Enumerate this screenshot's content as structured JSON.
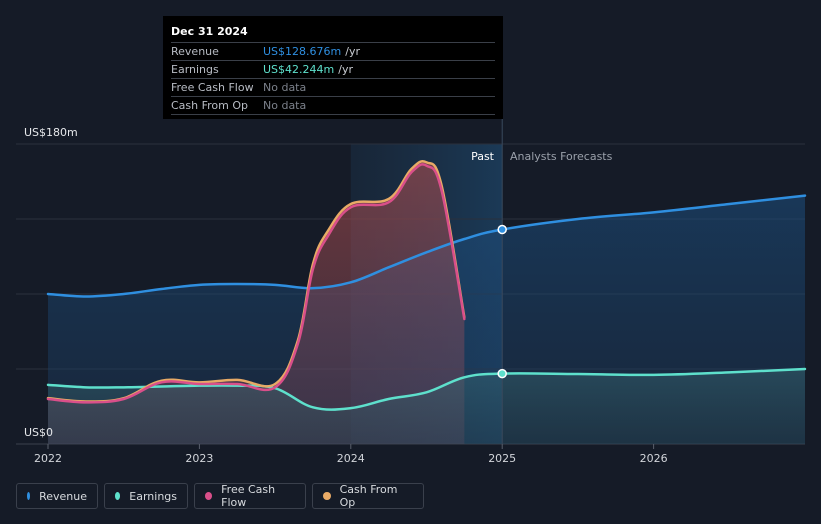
{
  "chart_data": {
    "type": "area",
    "y_axis": {
      "top_label": "US$180m",
      "bottom_label": "US$0",
      "ylim": [
        0,
        180
      ]
    },
    "x_ticks": [
      "2022",
      "2023",
      "2024",
      "2025",
      "2026"
    ],
    "x_tick_values": [
      2022.0,
      2023.0,
      2024.0,
      2025.0,
      2026.0
    ],
    "xlim": [
      2021.8,
      2027.0
    ],
    "past_label": "Past",
    "forecast_label": "Analysts Forecasts",
    "past_end": 2025.0,
    "highlight_start": 2024.0,
    "series": [
      {
        "name": "Revenue",
        "color": "#2f8fe0",
        "x": [
          2022.0,
          2022.25,
          2022.5,
          2022.75,
          2023.0,
          2023.25,
          2023.5,
          2023.75,
          2024.0,
          2024.25,
          2024.5,
          2024.75,
          2025.0,
          2025.5,
          2026.0,
          2026.5,
          2027.0
        ],
        "values": [
          90,
          88.5,
          90,
          93,
          95.5,
          96,
          95.5,
          93.5,
          97,
          106,
          115,
          123,
          128.676,
          135,
          139,
          144,
          149
        ]
      },
      {
        "name": "Earnings",
        "color": "#5ee0cc",
        "x": [
          2022.0,
          2022.25,
          2022.5,
          2022.75,
          2023.0,
          2023.25,
          2023.5,
          2023.75,
          2024.0,
          2024.25,
          2024.5,
          2024.75,
          2025.0,
          2025.5,
          2026.0,
          2026.5,
          2027.0
        ],
        "values": [
          35.5,
          34,
          34,
          34.5,
          35,
          35,
          33.5,
          22,
          21.5,
          27,
          31,
          40,
          42.244,
          42,
          41.5,
          43,
          45
        ]
      },
      {
        "name": "Free Cash Flow",
        "color": "#d94f8a",
        "x": [
          2022.0,
          2022.25,
          2022.5,
          2022.75,
          2023.0,
          2023.25,
          2023.5,
          2023.65,
          2023.75,
          2023.85,
          2024.0,
          2024.25,
          2024.4,
          2024.5,
          2024.6,
          2024.75
        ],
        "values": [
          27,
          25,
          27,
          37,
          36,
          36,
          34,
          60,
          105,
          125,
          142,
          145,
          163,
          167,
          152,
          75
        ]
      },
      {
        "name": "Cash From Op",
        "color": "#e8aa66",
        "x": [
          2022.0,
          2022.25,
          2022.5,
          2022.75,
          2023.0,
          2023.25,
          2023.5,
          2023.65,
          2023.75,
          2023.85,
          2024.0,
          2024.25,
          2024.4,
          2024.5,
          2024.6,
          2024.75
        ],
        "values": [
          27.5,
          25.5,
          27.5,
          38,
          37,
          38.5,
          36,
          62,
          108,
          128,
          144,
          147,
          165,
          169,
          155,
          76
        ]
      }
    ],
    "markers": [
      {
        "series": "Revenue",
        "x": 2025.0,
        "value": 128.676
      },
      {
        "series": "Earnings",
        "x": 2025.0,
        "value": 42.244
      }
    ],
    "legend": {
      "placement": "bottom-left",
      "items": [
        "Revenue",
        "Earnings",
        "Free Cash Flow",
        "Cash From Op"
      ]
    }
  },
  "tooltip": {
    "date": "Dec 31 2024",
    "rows": [
      {
        "name": "Revenue",
        "value": "US$128.676m",
        "unit": "/yr"
      },
      {
        "name": "Earnings",
        "value": "US$42.244m",
        "unit": "/yr"
      },
      {
        "name": "Free Cash Flow",
        "value": "No data",
        "unit": ""
      },
      {
        "name": "Cash From Op",
        "value": "No data",
        "unit": ""
      }
    ]
  },
  "legend_labels": {
    "revenue": "Revenue",
    "earnings": "Earnings",
    "fcf": "Free Cash Flow",
    "cfo": "Cash From Op"
  },
  "colors": {
    "background": "#151b27",
    "revenue": "#2f8fe0",
    "earnings": "#5ee0cc",
    "fcf": "#d94f8a",
    "cfo": "#e8aa66"
  }
}
